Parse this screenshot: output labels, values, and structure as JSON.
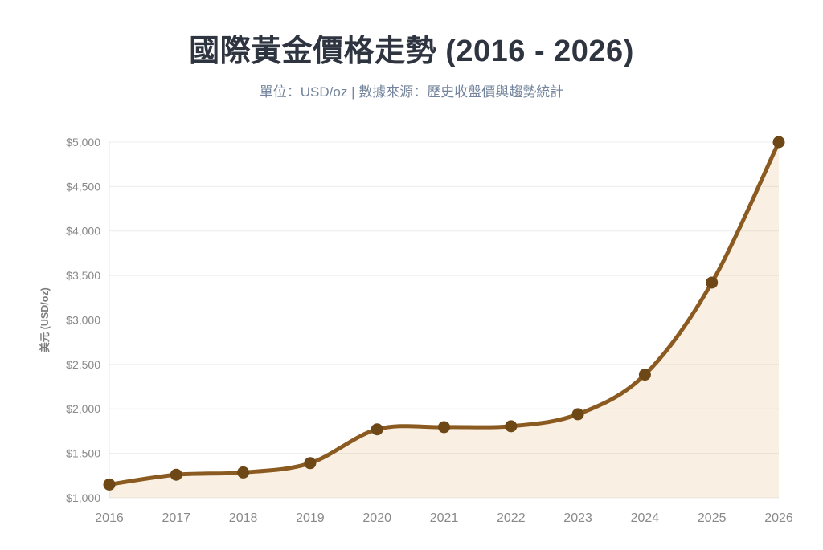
{
  "header": {
    "title": "國際黃金價格走勢 (2016 - 2026)",
    "subtitle": "單位：USD/oz | 數據來源：歷史收盤價與趨勢統計"
  },
  "chart_data": {
    "type": "area",
    "title": "國際黃金價格走勢 (2016 - 2026)",
    "subtitle": "單位：USD/oz | 數據來源：歷史收盤價與趨勢統計",
    "x": [
      "2016",
      "2017",
      "2018",
      "2019",
      "2020",
      "2021",
      "2022",
      "2023",
      "2024",
      "2025",
      "2026"
    ],
    "values": [
      1150,
      1260,
      1285,
      1390,
      1770,
      1795,
      1805,
      1940,
      2385,
      3420,
      5000
    ],
    "xlabel": "",
    "ylabel": "美元 (USD/oz)",
    "ylim": [
      1000,
      5000
    ],
    "ytick_step": 500,
    "ytick_prefix": "$",
    "grid": true,
    "legend": false,
    "line_smooth": true
  },
  "theme": {
    "background": "#ffffff",
    "title_color": "#2e3440",
    "subtitle_color": "#73849c",
    "line_color": "#8a5a20",
    "point_color": "#6e4716",
    "fill_color": "rgba(205,130,22,0.12)",
    "grid_color": "rgba(0,0,0,0.075)",
    "axis_line_color": "rgba(0,0,0,0.09)",
    "tick_color": "#898989",
    "axis_title_color": "#7d7d7d"
  }
}
